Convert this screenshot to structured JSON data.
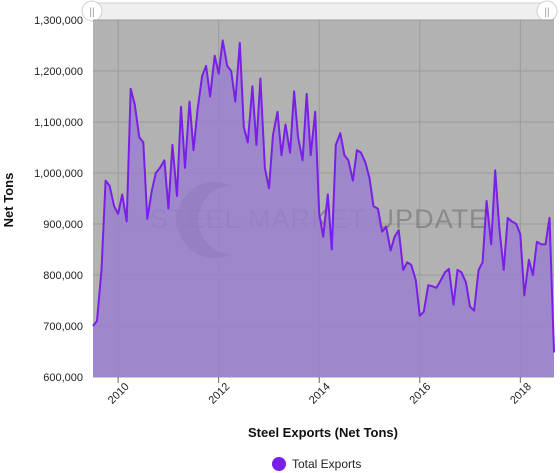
{
  "chart_data": {
    "type": "area",
    "title": "",
    "xlabel": "Steel Exports (Net Tons)",
    "ylabel": "Net Tons",
    "ylim": [
      600000,
      1300000
    ],
    "xlim": [
      2009.5,
      2018.67
    ],
    "yticks": [
      600000,
      700000,
      800000,
      900000,
      1000000,
      1100000,
      1200000,
      1300000
    ],
    "ytick_labels": [
      "600,000",
      "700,000",
      "800,000",
      "900,000",
      "1,000,000",
      "1,100,000",
      "1,200,000",
      "1,300,000"
    ],
    "xticks": [
      2010,
      2012,
      2014,
      2016,
      2018
    ],
    "xtick_labels": [
      "2010",
      "2012",
      "2014",
      "2016",
      "2018"
    ],
    "grid": true,
    "legend_position": "bottom-center",
    "series": [
      {
        "name": "Total Exports",
        "color": "#7a1fe8",
        "fill": "#9b7fd0",
        "points": [
          [
            2009.5,
            700000
          ],
          [
            2009.58,
            710000
          ],
          [
            2009.67,
            810000
          ],
          [
            2009.75,
            985000
          ],
          [
            2009.83,
            975000
          ],
          [
            2009.92,
            935000
          ],
          [
            2010.0,
            920000
          ],
          [
            2010.08,
            958000
          ],
          [
            2010.17,
            905000
          ],
          [
            2010.25,
            1165000
          ],
          [
            2010.33,
            1135000
          ],
          [
            2010.42,
            1070000
          ],
          [
            2010.5,
            1060000
          ],
          [
            2010.58,
            910000
          ],
          [
            2010.67,
            965000
          ],
          [
            2010.75,
            1000000
          ],
          [
            2010.83,
            1010000
          ],
          [
            2010.92,
            1025000
          ],
          [
            2011.0,
            930000
          ],
          [
            2011.08,
            1055000
          ],
          [
            2011.17,
            955000
          ],
          [
            2011.25,
            1130000
          ],
          [
            2011.33,
            1010000
          ],
          [
            2011.42,
            1140000
          ],
          [
            2011.5,
            1045000
          ],
          [
            2011.58,
            1125000
          ],
          [
            2011.67,
            1190000
          ],
          [
            2011.75,
            1210000
          ],
          [
            2011.83,
            1150000
          ],
          [
            2011.92,
            1230000
          ],
          [
            2012.0,
            1195000
          ],
          [
            2012.08,
            1260000
          ],
          [
            2012.17,
            1210000
          ],
          [
            2012.25,
            1200000
          ],
          [
            2012.33,
            1140000
          ],
          [
            2012.42,
            1255000
          ],
          [
            2012.5,
            1090000
          ],
          [
            2012.58,
            1060000
          ],
          [
            2012.67,
            1170000
          ],
          [
            2012.75,
            1055000
          ],
          [
            2012.83,
            1185000
          ],
          [
            2012.92,
            1010000
          ],
          [
            2013.0,
            970000
          ],
          [
            2013.08,
            1075000
          ],
          [
            2013.17,
            1120000
          ],
          [
            2013.25,
            1035000
          ],
          [
            2013.33,
            1095000
          ],
          [
            2013.42,
            1040000
          ],
          [
            2013.5,
            1160000
          ],
          [
            2013.58,
            1070000
          ],
          [
            2013.67,
            1025000
          ],
          [
            2013.75,
            1155000
          ],
          [
            2013.83,
            1035000
          ],
          [
            2013.92,
            1120000
          ],
          [
            2014.0,
            920000
          ],
          [
            2014.08,
            875000
          ],
          [
            2014.17,
            958000
          ],
          [
            2014.25,
            850000
          ],
          [
            2014.33,
            1055000
          ],
          [
            2014.42,
            1078000
          ],
          [
            2014.5,
            1035000
          ],
          [
            2014.58,
            1025000
          ],
          [
            2014.67,
            985000
          ],
          [
            2014.75,
            1045000
          ],
          [
            2014.83,
            1040000
          ],
          [
            2014.92,
            1020000
          ],
          [
            2015.0,
            990000
          ],
          [
            2015.08,
            935000
          ],
          [
            2015.17,
            930000
          ],
          [
            2015.25,
            885000
          ],
          [
            2015.33,
            895000
          ],
          [
            2015.42,
            848000
          ],
          [
            2015.5,
            875000
          ],
          [
            2015.58,
            888000
          ],
          [
            2015.67,
            810000
          ],
          [
            2015.75,
            825000
          ],
          [
            2015.83,
            820000
          ],
          [
            2015.92,
            790000
          ],
          [
            2016.0,
            720000
          ],
          [
            2016.08,
            728000
          ],
          [
            2016.17,
            780000
          ],
          [
            2016.25,
            778000
          ],
          [
            2016.33,
            775000
          ],
          [
            2016.42,
            790000
          ],
          [
            2016.5,
            805000
          ],
          [
            2016.58,
            812000
          ],
          [
            2016.67,
            742000
          ],
          [
            2016.75,
            810000
          ],
          [
            2016.83,
            805000
          ],
          [
            2016.92,
            785000
          ],
          [
            2017.0,
            738000
          ],
          [
            2017.08,
            730000
          ],
          [
            2017.17,
            810000
          ],
          [
            2017.25,
            825000
          ],
          [
            2017.33,
            945000
          ],
          [
            2017.42,
            860000
          ],
          [
            2017.5,
            1005000
          ],
          [
            2017.58,
            895000
          ],
          [
            2017.67,
            810000
          ],
          [
            2017.75,
            912000
          ],
          [
            2017.83,
            905000
          ],
          [
            2017.92,
            900000
          ],
          [
            2018.0,
            880000
          ],
          [
            2018.08,
            760000
          ],
          [
            2018.17,
            830000
          ],
          [
            2018.25,
            800000
          ],
          [
            2018.33,
            865000
          ],
          [
            2018.42,
            860000
          ],
          [
            2018.5,
            860000
          ],
          [
            2018.58,
            912000
          ],
          [
            2018.67,
            650000
          ],
          [
            2018.75,
            648000
          ]
        ]
      }
    ],
    "watermark": "STEEL MARKET UPDATE"
  },
  "ui": {
    "scrollbar": {
      "left_handle": "||",
      "right_handle": "||"
    }
  }
}
